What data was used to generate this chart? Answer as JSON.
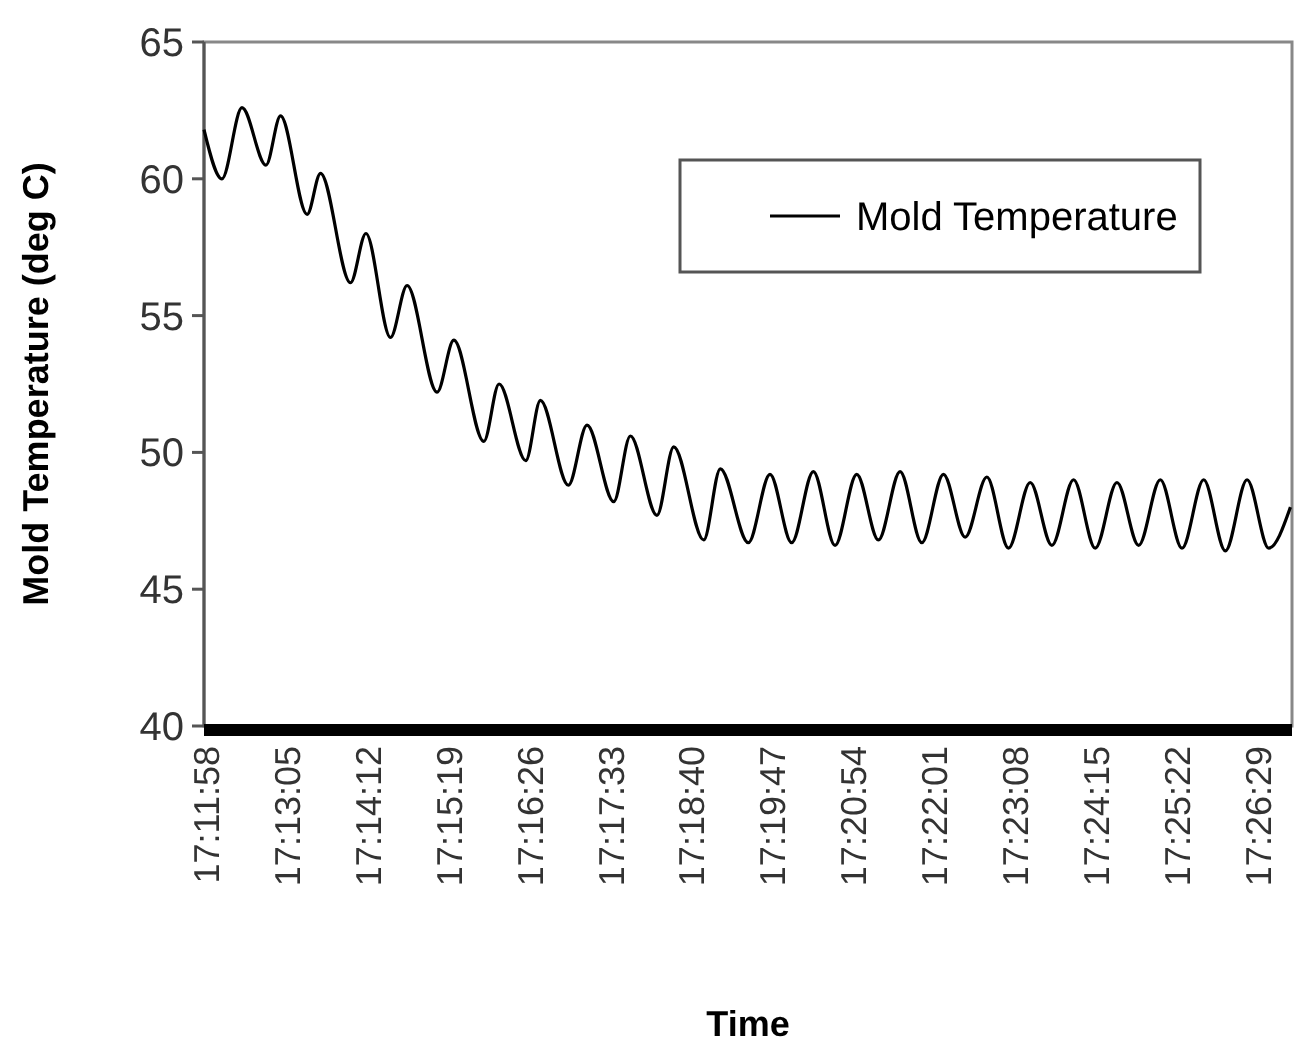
{
  "chart_data": {
    "type": "line",
    "xlabel": "Time",
    "ylabel": "Mold Temperature (deg C)",
    "xlim": [
      17.19885,
      17.44921
    ],
    "ylim": [
      40,
      65
    ],
    "yticks": [
      40,
      45,
      50,
      55,
      60,
      65
    ],
    "xticks": [
      {
        "value": 17.199444,
        "label": "17:11:58"
      },
      {
        "value": 17.218056,
        "label": "17:13:05"
      },
      {
        "value": 17.236667,
        "label": "17:14:12"
      },
      {
        "value": 17.255278,
        "label": "17:15:19"
      },
      {
        "value": 17.273889,
        "label": "17:16:26"
      },
      {
        "value": 17.2925,
        "label": "17:17:33"
      },
      {
        "value": 17.311111,
        "label": "17:18:40"
      },
      {
        "value": 17.329722,
        "label": "17:19:47"
      },
      {
        "value": 17.348333,
        "label": "17:20:54"
      },
      {
        "value": 17.366944,
        "label": "17:22:01"
      },
      {
        "value": 17.385556,
        "label": "17:23:08"
      },
      {
        "value": 17.404167,
        "label": "17:24:15"
      },
      {
        "value": 17.422778,
        "label": "17:25:22"
      },
      {
        "value": 17.441389,
        "label": "17:26:29"
      }
    ],
    "legend": "top right",
    "grid": false,
    "line_style": "solid",
    "marker": "none",
    "series": [
      {
        "name": "Mold Temperature",
        "color": "#000000",
        "x": [
          17.19885,
          17.20298,
          17.20759,
          17.21311,
          17.21646,
          17.22258,
          17.22566,
          17.23256,
          17.23611,
          17.24176,
          17.24558,
          17.25248,
          17.25634,
          17.26324,
          17.26674,
          17.2729,
          17.27626,
          17.2827,
          17.28698,
          17.29314,
          17.29696,
          17.30308,
          17.30694,
          17.31384,
          17.31766,
          17.3241,
          17.32909,
          17.33408,
          17.33907,
          17.34406,
          17.34905,
          17.35404,
          17.35903,
          17.36402,
          17.36901,
          17.374,
          17.37899,
          17.38398,
          17.38897,
          17.39396,
          17.39895,
          17.40394,
          17.40893,
          17.41392,
          17.41891,
          17.4239,
          17.42889,
          17.43388,
          17.43887,
          17.44386,
          17.44885
        ],
        "values": [
          61.8,
          60.0,
          62.6,
          60.5,
          62.3,
          58.7,
          60.2,
          56.2,
          58.0,
          54.2,
          56.1,
          52.2,
          54.1,
          50.4,
          52.5,
          49.7,
          51.9,
          48.8,
          51.0,
          48.2,
          50.6,
          47.7,
          50.2,
          46.8,
          49.4,
          46.7,
          49.2,
          46.7,
          49.3,
          46.6,
          49.2,
          46.8,
          49.3,
          46.7,
          49.2,
          46.9,
          49.1,
          46.5,
          48.9,
          46.6,
          49.0,
          46.5,
          48.9,
          46.6,
          49.0,
          46.5,
          49.0,
          46.4,
          49.0,
          46.5,
          48.0
        ]
      }
    ]
  }
}
